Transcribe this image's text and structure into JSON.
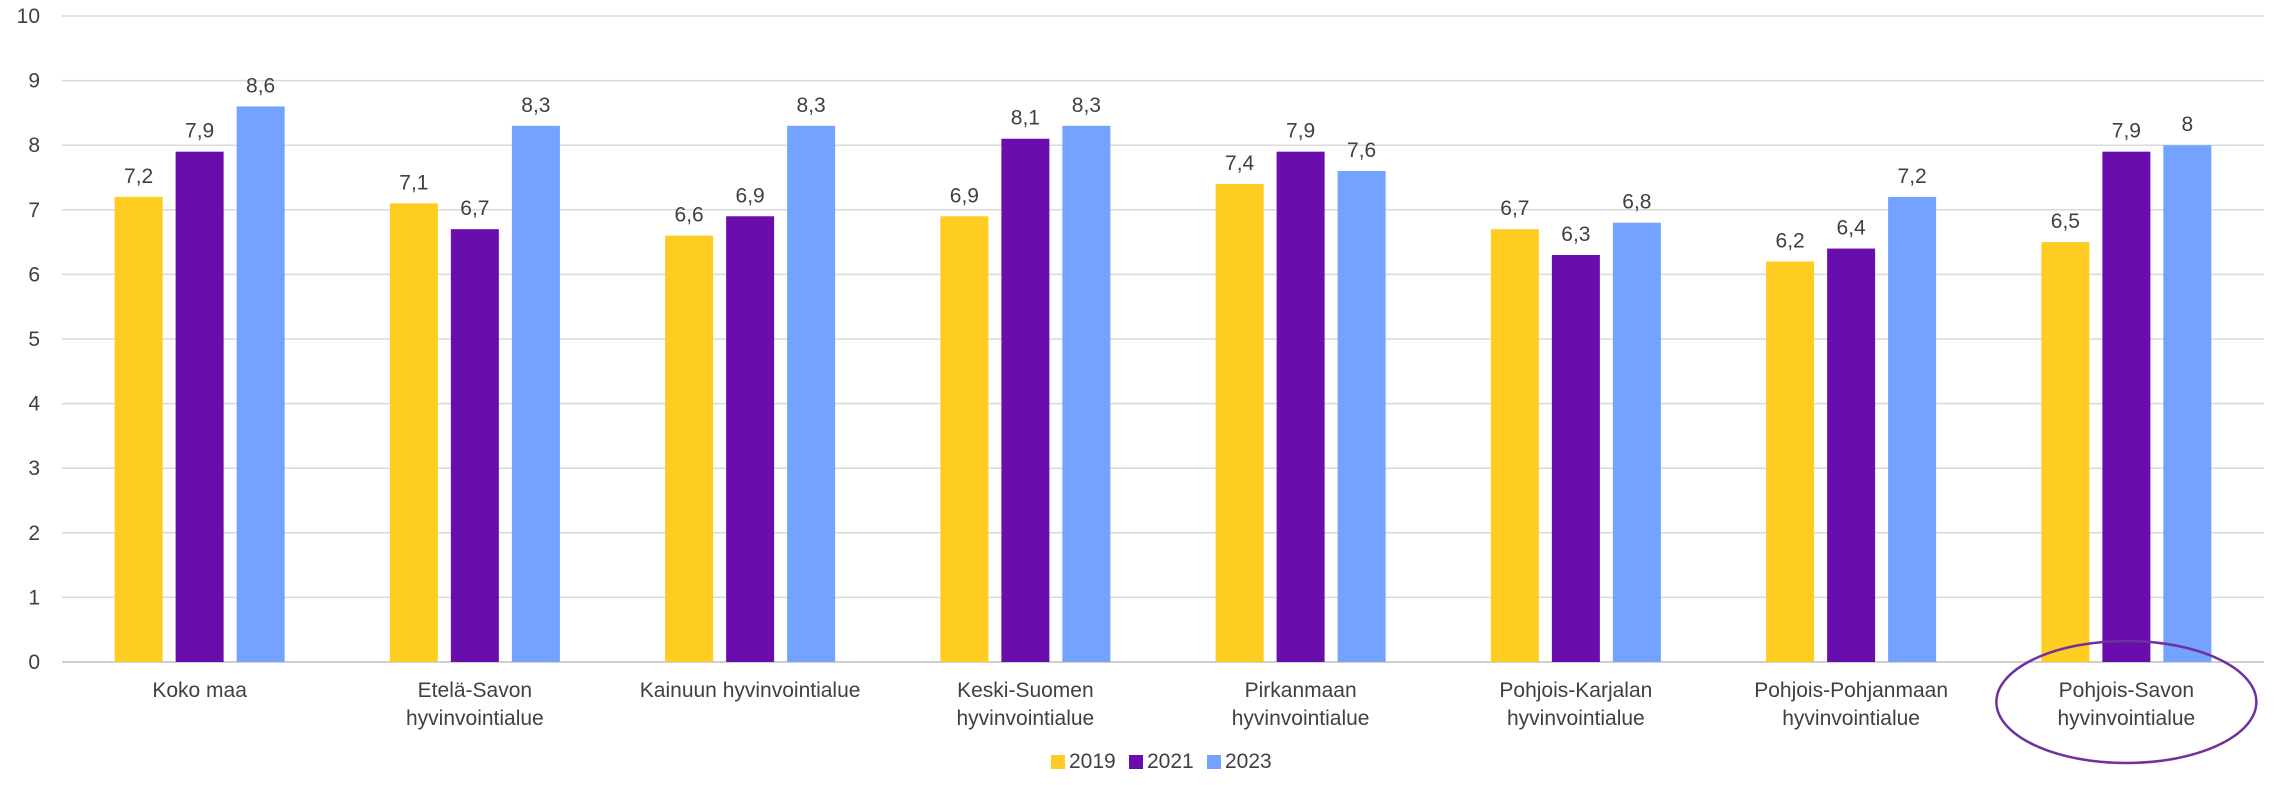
{
  "chart_data": {
    "type": "bar",
    "title": "",
    "xlabel": "",
    "ylabel": "",
    "ylim": [
      0,
      10
    ],
    "yticks": [
      "0",
      "1",
      "2",
      "3",
      "4",
      "5",
      "6",
      "7",
      "8",
      "9",
      "10"
    ],
    "grid": true,
    "legend_position": "bottom",
    "categories": [
      [
        "Koko maa"
      ],
      [
        "Etelä-Savon",
        "hyvinvointialue"
      ],
      [
        "Kainuun hyvinvointialue"
      ],
      [
        "Keski-Suomen",
        "hyvinvointialue"
      ],
      [
        "Pirkanmaan",
        "hyvinvointialue"
      ],
      [
        "Pohjois-Karjalan",
        "hyvinvointialue"
      ],
      [
        "Pohjois-Pohjanmaan",
        "hyvinvointialue"
      ],
      [
        "Pohjois-Savon",
        "hyvinvointialue"
      ]
    ],
    "series": [
      {
        "name": "2019",
        "color": "#FFCC22",
        "values": [
          7.2,
          7.1,
          6.6,
          6.9,
          7.4,
          6.7,
          6.2,
          6.5
        ],
        "labels": [
          "7,2",
          "7,1",
          "6,6",
          "6,9",
          "7,4",
          "6,7",
          "6,2",
          "6,5"
        ]
      },
      {
        "name": "2021",
        "color": "#6A0DAD",
        "values": [
          7.9,
          6.7,
          6.9,
          8.1,
          7.9,
          6.3,
          6.4,
          7.9
        ],
        "labels": [
          "7,9",
          "6,7",
          "6,9",
          "8,1",
          "7,9",
          "6,3",
          "6,4",
          "7,9"
        ]
      },
      {
        "name": "2023",
        "color": "#73A2FF",
        "values": [
          8.6,
          8.3,
          8.3,
          8.3,
          7.6,
          6.8,
          7.2,
          8.0
        ],
        "labels": [
          "8,6",
          "8,3",
          "8,3",
          "8,3",
          "7,6",
          "6,8",
          "7,2",
          "8"
        ]
      }
    ],
    "highlight": {
      "category_index": 7,
      "shape": "ellipse",
      "color": "#7030A0"
    }
  }
}
